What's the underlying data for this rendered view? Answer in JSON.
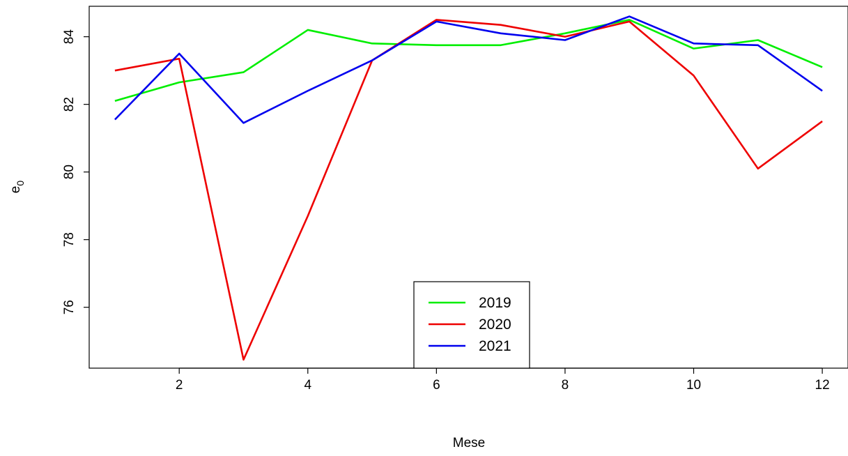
{
  "chart_data": {
    "type": "line",
    "title": "",
    "xlabel": "Mese",
    "ylabel_base": "e",
    "ylabel_sub": "0",
    "x": [
      1,
      2,
      3,
      4,
      5,
      6,
      7,
      8,
      9,
      10,
      11,
      12
    ],
    "xlim": [
      0.6,
      12.4
    ],
    "ylim": [
      74.2,
      84.9
    ],
    "xticks": [
      2,
      4,
      6,
      8,
      10,
      12
    ],
    "yticks": [
      76,
      78,
      80,
      82,
      84
    ],
    "grid": false,
    "legend_position": "bottom-center",
    "series": [
      {
        "name": "2019",
        "color": "#00ee00",
        "values": [
          82.1,
          82.65,
          82.95,
          84.2,
          83.8,
          83.75,
          83.75,
          84.1,
          84.5,
          83.65,
          83.9,
          83.1
        ]
      },
      {
        "name": "2020",
        "color": "#ee0000",
        "values": [
          83.0,
          83.35,
          74.45,
          78.7,
          83.3,
          84.5,
          84.35,
          84.0,
          84.45,
          82.85,
          80.1,
          81.5
        ]
      },
      {
        "name": "2021",
        "color": "#0000ee",
        "values": [
          81.55,
          83.5,
          81.45,
          82.4,
          83.3,
          84.45,
          84.1,
          83.9,
          84.6,
          83.8,
          83.75,
          82.4
        ]
      }
    ]
  }
}
